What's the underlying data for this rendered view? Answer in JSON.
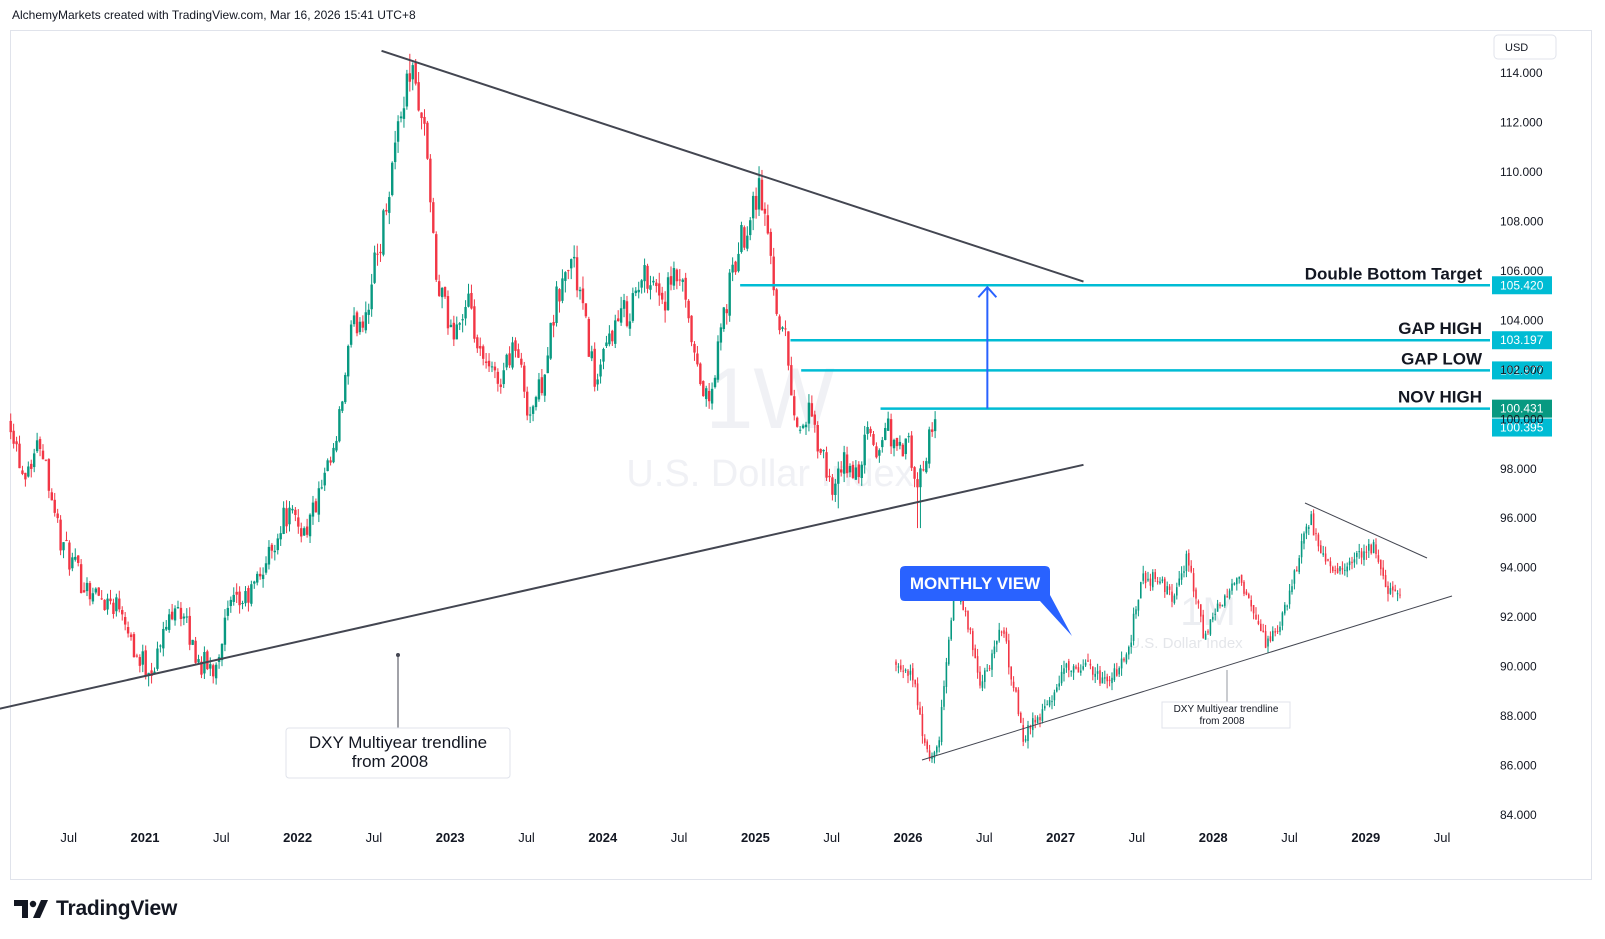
{
  "header": {
    "text": "AlchemyMarkets created with TradingView.com, Mar 16, 2026 15:41 UTC+8"
  },
  "watermark": {
    "ticker": "1W",
    "name": "U.S. Dollar Index"
  },
  "inset": {
    "watermark_ticker": "1M",
    "watermark_name": "U.S. Dollar Index",
    "trendline_label": "DXY Multiyear trendline from 2008",
    "trendline_label_lines": [
      "DXY Multiyear trendline",
      "from 2008"
    ]
  },
  "annotations": {
    "monthly_view": "MONTHLY VIEW",
    "trendline_line1": "DXY Multiyear trendline",
    "trendline_line2": "from 2008"
  },
  "footer": {
    "brand": "TradingView"
  },
  "colors": {
    "up": "#089981",
    "down": "#f23645",
    "level": "#00bcd4",
    "arrow": "#2962ff",
    "callout": "#2962ff",
    "trendline": "#434651"
  },
  "chart_data": {
    "type": "candlestick",
    "symbol": "U.S. Dollar Index",
    "timeframe": "1W",
    "currency": "USD",
    "ylim": [
      83.0,
      116.8
    ],
    "y_ticks": [
      84.0,
      86.0,
      88.0,
      90.0,
      92.0,
      94.0,
      96.0,
      98.0,
      100.0,
      102.0,
      104.0,
      106.0,
      108.0,
      110.0,
      112.0,
      114.0
    ],
    "x_ticks": [
      {
        "label": "Jul",
        "t": 2020.5,
        "bold": false
      },
      {
        "label": "2021",
        "t": 2021.0,
        "bold": true
      },
      {
        "label": "Jul",
        "t": 2021.5,
        "bold": false
      },
      {
        "label": "2022",
        "t": 2022.0,
        "bold": true
      },
      {
        "label": "Jul",
        "t": 2022.5,
        "bold": false
      },
      {
        "label": "2023",
        "t": 2023.0,
        "bold": true
      },
      {
        "label": "Jul",
        "t": 2023.5,
        "bold": false
      },
      {
        "label": "2024",
        "t": 2024.0,
        "bold": true
      },
      {
        "label": "Jul",
        "t": 2024.5,
        "bold": false
      },
      {
        "label": "2025",
        "t": 2025.0,
        "bold": true
      },
      {
        "label": "Jul",
        "t": 2025.5,
        "bold": false
      },
      {
        "label": "2026",
        "t": 2026.0,
        "bold": true
      },
      {
        "label": "Jul",
        "t": 2026.5,
        "bold": false
      },
      {
        "label": "2027",
        "t": 2027.0,
        "bold": true
      },
      {
        "label": "Jul",
        "t": 2027.5,
        "bold": false
      },
      {
        "label": "2028",
        "t": 2028.0,
        "bold": true
      },
      {
        "label": "Jul",
        "t": 2028.5,
        "bold": false
      },
      {
        "label": "2029",
        "t": 2029.0,
        "bold": true
      },
      {
        "label": "Jul",
        "t": 2029.5,
        "bold": false
      }
    ],
    "price_path": [
      [
        2020.12,
        100.0
      ],
      [
        2020.2,
        97.8
      ],
      [
        2020.32,
        99.2
      ],
      [
        2020.45,
        95.0
      ],
      [
        2020.58,
        93.5
      ],
      [
        2020.7,
        92.8
      ],
      [
        2020.85,
        92.5
      ],
      [
        2020.95,
        90.3
      ],
      [
        2021.05,
        89.9
      ],
      [
        2021.2,
        92.8
      ],
      [
        2021.35,
        90.2
      ],
      [
        2021.45,
        89.9
      ],
      [
        2021.55,
        92.3
      ],
      [
        2021.68,
        92.8
      ],
      [
        2021.8,
        94.3
      ],
      [
        2021.92,
        96.2
      ],
      [
        2022.05,
        95.5
      ],
      [
        2022.15,
        97.0
      ],
      [
        2022.25,
        98.8
      ],
      [
        2022.35,
        103.5
      ],
      [
        2022.45,
        104.5
      ],
      [
        2022.55,
        107.5
      ],
      [
        2022.66,
        112.0
      ],
      [
        2022.74,
        114.2
      ],
      [
        2022.8,
        112.8
      ],
      [
        2022.85,
        110.8
      ],
      [
        2022.9,
        105.8
      ],
      [
        2023.0,
        103.5
      ],
      [
        2023.12,
        104.5
      ],
      [
        2023.2,
        102.3
      ],
      [
        2023.32,
        101.5
      ],
      [
        2023.42,
        103.2
      ],
      [
        2023.52,
        100.2
      ],
      [
        2023.6,
        101.5
      ],
      [
        2023.7,
        104.8
      ],
      [
        2023.8,
        106.6
      ],
      [
        2023.88,
        104.0
      ],
      [
        2023.96,
        101.3
      ],
      [
        2024.05,
        103.5
      ],
      [
        2024.15,
        104.3
      ],
      [
        2024.3,
        106.0
      ],
      [
        2024.4,
        104.8
      ],
      [
        2024.5,
        105.8
      ],
      [
        2024.62,
        101.8
      ],
      [
        2024.7,
        100.5
      ],
      [
        2024.78,
        103.8
      ],
      [
        2024.88,
        106.7
      ],
      [
        2024.97,
        108.5
      ],
      [
        2025.02,
        109.5
      ],
      [
        2025.08,
        107.5
      ],
      [
        2025.15,
        104.2
      ],
      [
        2025.2,
        103.2
      ],
      [
        2025.27,
        99.5
      ],
      [
        2025.35,
        100.2
      ],
      [
        2025.45,
        98.2
      ],
      [
        2025.52,
        97.0
      ],
      [
        2025.58,
        98.3
      ],
      [
        2025.66,
        97.6
      ],
      [
        2025.74,
        99.5
      ],
      [
        2025.8,
        98.5
      ],
      [
        2025.86,
        100.0
      ],
      [
        2025.92,
        98.6
      ],
      [
        2026.0,
        99.0
      ],
      [
        2026.05,
        97.2
      ],
      [
        2026.1,
        97.8
      ],
      [
        2026.15,
        99.8
      ],
      [
        2026.19,
        100.43
      ]
    ],
    "swing_points": [
      {
        "t": 2022.74,
        "high": 114.78
      },
      {
        "t": 2025.02,
        "high": 110.18
      },
      {
        "t": 2021.02,
        "low": 89.2
      },
      {
        "t": 2025.55,
        "low": 96.4
      },
      {
        "t": 2026.07,
        "low": 95.6
      }
    ],
    "trendlines": [
      {
        "name": "DXY Multiyear trendline from 2008",
        "points": [
          [
            2020.0,
            88.23
          ],
          [
            2022.5,
            91.7
          ],
          [
            2025.5,
            95.86
          ],
          [
            2027.15,
            98.16
          ]
        ]
      },
      {
        "name": "descending resistance",
        "points": [
          [
            2022.55,
            114.9
          ],
          [
            2025.02,
            110.0
          ],
          [
            2027.15,
            105.57
          ]
        ]
      }
    ],
    "levels": [
      {
        "label": "Double Bottom Target",
        "value": 105.42,
        "from_t": 2024.9
      },
      {
        "label": "GAP HIGH",
        "value": 103.197,
        "from_t": 2025.23
      },
      {
        "label": "GAP LOW",
        "value": 101.977,
        "from_t": 2025.3
      },
      {
        "label": "NOV HIGH",
        "value": 100.431,
        "from_t": 2025.82
      }
    ],
    "current_price": 100.431,
    "previous_close": 100.395,
    "projection_arrow": {
      "t": 2026.52,
      "from": 100.43,
      "to": 105.42
    },
    "inset_monthly": {
      "path": [
        [
          0.0,
          0.6
        ],
        [
          0.03,
          0.66
        ],
        [
          0.06,
          0.98
        ],
        [
          0.08,
          0.92
        ],
        [
          0.11,
          0.32
        ],
        [
          0.13,
          0.4
        ],
        [
          0.16,
          0.7
        ],
        [
          0.2,
          0.47
        ],
        [
          0.24,
          0.9
        ],
        [
          0.28,
          0.8
        ],
        [
          0.32,
          0.62
        ],
        [
          0.36,
          0.63
        ],
        [
          0.4,
          0.7
        ],
        [
          0.44,
          0.55
        ],
        [
          0.46,
          0.3
        ],
        [
          0.49,
          0.28
        ],
        [
          0.52,
          0.35
        ],
        [
          0.55,
          0.2
        ],
        [
          0.58,
          0.5
        ],
        [
          0.61,
          0.38
        ],
        [
          0.64,
          0.3
        ],
        [
          0.66,
          0.33
        ],
        [
          0.7,
          0.55
        ],
        [
          0.73,
          0.42
        ],
        [
          0.76,
          0.2
        ],
        [
          0.78,
          0.05
        ],
        [
          0.81,
          0.22
        ],
        [
          0.84,
          0.25
        ],
        [
          0.87,
          0.18
        ],
        [
          0.9,
          0.16
        ],
        [
          0.93,
          0.35
        ],
        [
          0.95,
          0.33
        ]
      ]
    }
  }
}
